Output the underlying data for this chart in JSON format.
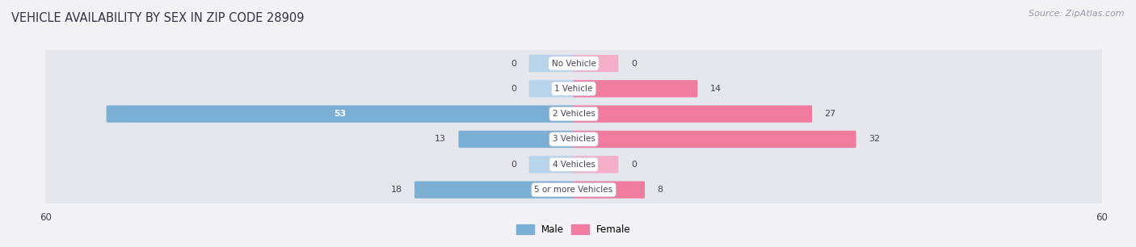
{
  "title": "VEHICLE AVAILABILITY BY SEX IN ZIP CODE 28909",
  "source": "Source: ZipAtlas.com",
  "categories": [
    "No Vehicle",
    "1 Vehicle",
    "2 Vehicles",
    "3 Vehicles",
    "4 Vehicles",
    "5 or more Vehicles"
  ],
  "male_values": [
    0,
    0,
    53,
    13,
    0,
    18
  ],
  "female_values": [
    0,
    14,
    27,
    32,
    0,
    8
  ],
  "male_color": "#7bafd4",
  "female_color": "#f07ca0",
  "male_color_light": "#b8d4ea",
  "female_color_light": "#f5afc8",
  "male_label": "Male",
  "female_label": "Female",
  "x_max": 60,
  "background_color": "#f2f2f7",
  "row_bg_color": "#e6e6ed",
  "text_color": "#444455",
  "source_color": "#999aaa",
  "stub_size": 5
}
